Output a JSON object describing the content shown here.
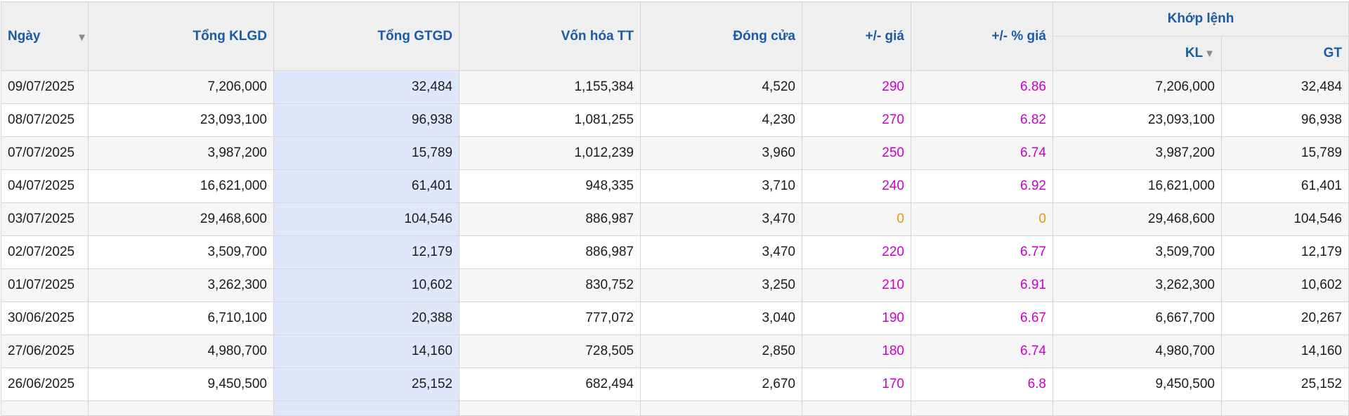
{
  "colors": {
    "header_text": "#1b5ba4",
    "up": "#cc00cc",
    "flat": "#e8960c",
    "highlight_column": "#dfe8fb"
  },
  "headers": {
    "date": "Ngày",
    "total_volume": "Tổng KLGD",
    "total_value": "Tổng GTGD",
    "market_cap": "Vốn hóa TT",
    "close": "Đóng cửa",
    "change": "+/- giá",
    "change_pct": "+/- % giá",
    "matched_group": "Khớp lệnh",
    "matched_volume": "KL",
    "matched_value": "GT",
    "sort_icon": "▼"
  },
  "rows": [
    {
      "date": "09/07/2025",
      "total_volume": "7,206,000",
      "total_value": "32,484",
      "market_cap": "1,155,384",
      "close": "4,520",
      "change": "290",
      "change_pct": "6.86",
      "matched_volume": "7,206,000",
      "matched_value": "32,484",
      "trend": "up"
    },
    {
      "date": "08/07/2025",
      "total_volume": "23,093,100",
      "total_value": "96,938",
      "market_cap": "1,081,255",
      "close": "4,230",
      "change": "270",
      "change_pct": "6.82",
      "matched_volume": "23,093,100",
      "matched_value": "96,938",
      "trend": "up"
    },
    {
      "date": "07/07/2025",
      "total_volume": "3,987,200",
      "total_value": "15,789",
      "market_cap": "1,012,239",
      "close": "3,960",
      "change": "250",
      "change_pct": "6.74",
      "matched_volume": "3,987,200",
      "matched_value": "15,789",
      "trend": "up"
    },
    {
      "date": "04/07/2025",
      "total_volume": "16,621,000",
      "total_value": "61,401",
      "market_cap": "948,335",
      "close": "3,710",
      "change": "240",
      "change_pct": "6.92",
      "matched_volume": "16,621,000",
      "matched_value": "61,401",
      "trend": "up"
    },
    {
      "date": "03/07/2025",
      "total_volume": "29,468,600",
      "total_value": "104,546",
      "market_cap": "886,987",
      "close": "3,470",
      "change": "0",
      "change_pct": "0",
      "matched_volume": "29,468,600",
      "matched_value": "104,546",
      "trend": "flat"
    },
    {
      "date": "02/07/2025",
      "total_volume": "3,509,700",
      "total_value": "12,179",
      "market_cap": "886,987",
      "close": "3,470",
      "change": "220",
      "change_pct": "6.77",
      "matched_volume": "3,509,700",
      "matched_value": "12,179",
      "trend": "up"
    },
    {
      "date": "01/07/2025",
      "total_volume": "3,262,300",
      "total_value": "10,602",
      "market_cap": "830,752",
      "close": "3,250",
      "change": "210",
      "change_pct": "6.91",
      "matched_volume": "3,262,300",
      "matched_value": "10,602",
      "trend": "up"
    },
    {
      "date": "30/06/2025",
      "total_volume": "6,710,100",
      "total_value": "20,388",
      "market_cap": "777,072",
      "close": "3,040",
      "change": "190",
      "change_pct": "6.67",
      "matched_volume": "6,667,700",
      "matched_value": "20,267",
      "trend": "up"
    },
    {
      "date": "27/06/2025",
      "total_volume": "4,980,700",
      "total_value": "14,160",
      "market_cap": "728,505",
      "close": "2,850",
      "change": "180",
      "change_pct": "6.74",
      "matched_volume": "4,980,700",
      "matched_value": "14,160",
      "trend": "up"
    },
    {
      "date": "26/06/2025",
      "total_volume": "9,450,500",
      "total_value": "25,152",
      "market_cap": "682,494",
      "close": "2,670",
      "change": "170",
      "change_pct": "6.8",
      "matched_volume": "9,450,500",
      "matched_value": "25,152",
      "trend": "up"
    }
  ]
}
